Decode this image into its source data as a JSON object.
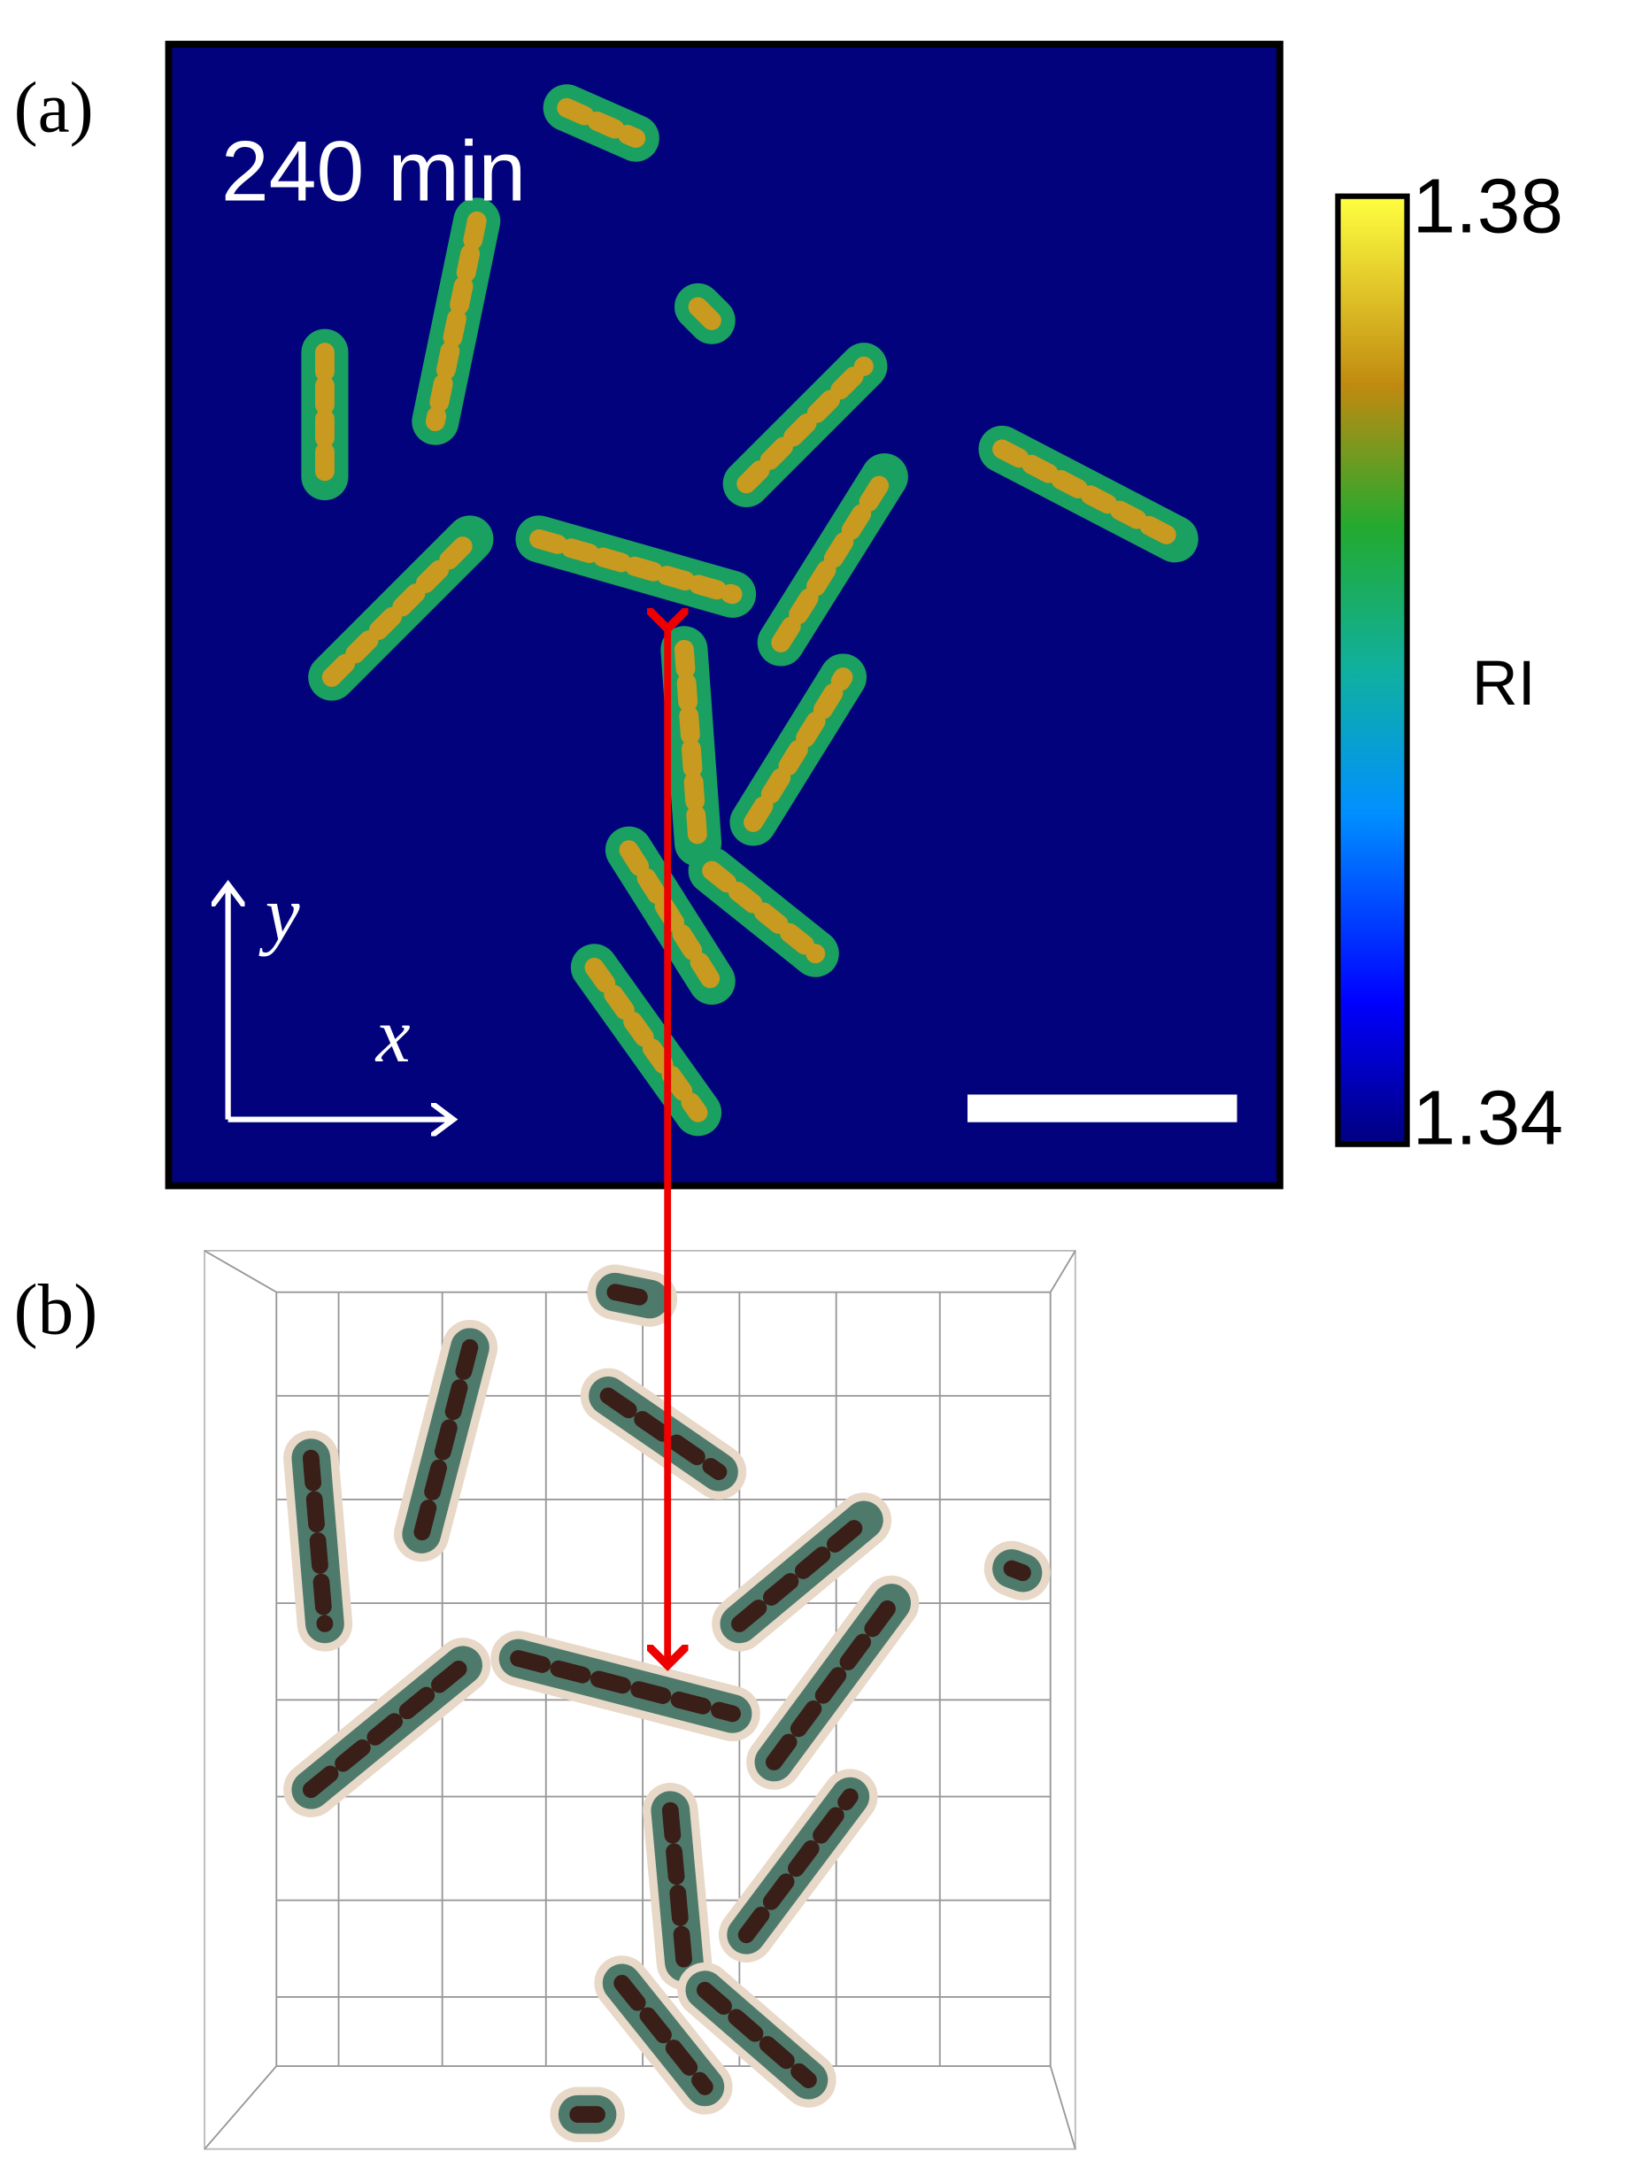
{
  "panel_a": {
    "label": "(a)",
    "time": "240 min",
    "axis_y": "y",
    "axis_x": "x"
  },
  "colorbar": {
    "max": 1.38,
    "min": 1.34,
    "label": "RI"
  },
  "panel_b": {
    "label": "(b)"
  }
}
